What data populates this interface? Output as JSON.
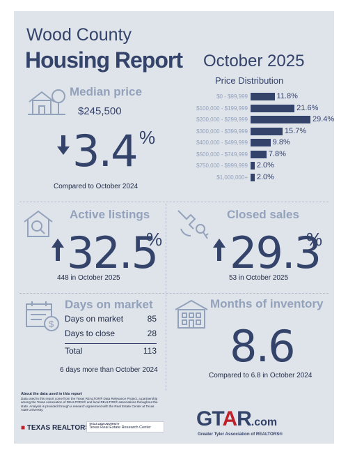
{
  "header": {
    "county": "Wood County",
    "report": "Housing Report",
    "month": "October 2025"
  },
  "price_distribution": {
    "title": "Price Distribution",
    "rows": [
      {
        "label": "$0 - $99,999",
        "value": "11.8%",
        "pct": 11.8
      },
      {
        "label": "$100,000 - $199,999",
        "value": "21.6%",
        "pct": 21.6
      },
      {
        "label": "$200,000 - $299,999",
        "value": "29.4%",
        "pct": 29.4
      },
      {
        "label": "$300,000 - $399,999",
        "value": "15.7%",
        "pct": 15.7
      },
      {
        "label": "$400,000 - $499,999",
        "value": "9.8%",
        "pct": 9.8
      },
      {
        "label": "$500,000 - $749,999",
        "value": "7.8%",
        "pct": 7.8
      },
      {
        "label": "$750,000 - $999,999",
        "value": "2.0%",
        "pct": 2.0
      },
      {
        "label": "$1,000,000+",
        "value": "2.0%",
        "pct": 2.0
      }
    ]
  },
  "median_price": {
    "title": "Median price",
    "price": "$245,500",
    "change": "3.4",
    "percent_sign": "%",
    "direction": "down",
    "caption": "Compared to October 2024"
  },
  "active_listings": {
    "title": "Active listings",
    "change": "32.5",
    "percent_sign": "%",
    "direction": "up",
    "caption": "448 in October 2025"
  },
  "closed_sales": {
    "title": "Closed sales",
    "change": "29.3",
    "percent_sign": "%",
    "direction": "up",
    "caption": "53 in October 2025"
  },
  "days_on_market": {
    "title": "Days on market",
    "rows": [
      {
        "label": "Days on market",
        "value": "85"
      },
      {
        "label": "Days to close",
        "value": "28"
      }
    ],
    "total_label": "Total",
    "total_value": "113",
    "caption": "6 days more than October 2024"
  },
  "months_inventory": {
    "title": "Months of inventory",
    "value": "8.6",
    "caption": "Compared to 6.8 in October 2024"
  },
  "footer": {
    "about_title": "About the data used in this report",
    "about_text": "Data used in this report come from the Texas REALTOR® Data Relevance Project, a partnership among the Texas Association of REALTORS® and local REALTOR® associations throughout the state. Analysis is provided through a research agreement with the Real Estate Center at Texas A&M University.",
    "texas_realtors": "TEXAS REALTORS",
    "trec_top": "TEXAS A&M UNIVERSITY",
    "trec_name": "Texas Real Estate Research Center",
    "gtar_g": "GT",
    "gtar_a": "A",
    "gtar_r": "R",
    "gtar_com": ".com",
    "gtar_sub": "Greater Tyler Association of REALTORS®"
  },
  "colors": {
    "navy": "#34436a",
    "gray": "#93a2bb",
    "background": "#dfe3ea",
    "accent_red": "#c0202a"
  }
}
